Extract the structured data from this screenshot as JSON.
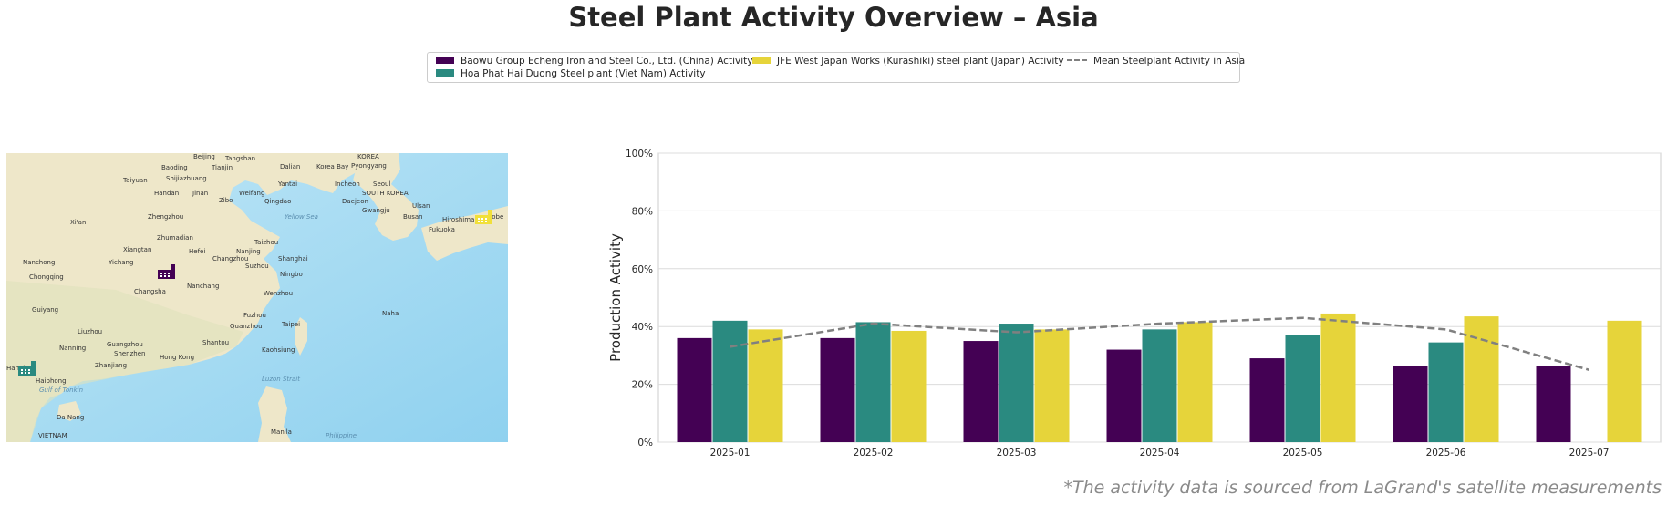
{
  "title": "Steel Plant Activity Overview – Asia",
  "footnote": "*The activity data is sourced from LaGrand's satellite measurements",
  "legend": {
    "baowu": "Baowu Group Echeng Iron and Steel Co., Ltd. (China) Activity",
    "hoaphat": "Hoa Phat Hai Duong Steel plant (Viet Nam) Activity",
    "jfe": "JFE West Japan Works (Kurashiki) steel plant (Japan) Activity",
    "mean": "Mean Steelplant Activity in Asia"
  },
  "colors": {
    "baowu": "#440154",
    "hoaphat": "#2a8a80",
    "jfe": "#e6d43a",
    "mean": "#808080"
  },
  "map": {
    "icons": [
      "factory-icon-china",
      "factory-icon-vietnam",
      "factory-icon-japan"
    ],
    "labels": {
      "korea": "KOREA",
      "south_korea": "SOUTH KOREA",
      "vietnam": "VIETNAM",
      "beijing": "Beijing",
      "tangshan": "Tangshan",
      "baoding": "Baoding",
      "tianjin": "Tianjin",
      "shijiazhuang": "Shijiazhuang",
      "taiyuan": "Taiyuan",
      "handan": "Handan",
      "jinan": "Jinan",
      "weifang": "Weifang",
      "zibo": "Zibo",
      "qingdao": "Qingdao",
      "yantai": "Yantai",
      "dalian": "Dalian",
      "incheon": "Incheon",
      "seoul": "Seoul",
      "pyongyang": "Pyongyang",
      "daejeon": "Daejeon",
      "gwangju": "Gwangju",
      "busan": "Busan",
      "ulsan": "Ulsan",
      "fukuoka": "Fukuoka",
      "hiroshima": "Hiroshima",
      "kobe": "Kobe",
      "xian": "Xi'an",
      "zhengzhou": "Zhengzhou",
      "zhumadian": "Zhumadian",
      "xiangtan": "Xiangtan",
      "hefei": "Hefei",
      "taizhou": "Taizhou",
      "nanjing": "Nanjing",
      "changzhou": "Changzhou",
      "shanghai": "Shanghai",
      "suzhou": "Suzhou",
      "ningbo": "Ningbo",
      "nanchong": "Nanchong",
      "yichang": "Yichang",
      "chongqing": "Chongqing",
      "changsha": "Changsha",
      "nanchang": "Nanchang",
      "wenzhou": "Wenzhou",
      "guiyang": "Guiyang",
      "fuzhou": "Fuzhou",
      "quanzhou": "Quanzhou",
      "taipei": "Taipei",
      "naha": "Naha",
      "liuzhou": "Liuzhou",
      "nanning": "Nanning",
      "guangzhou": "Guangzhou",
      "shenzhen": "Shenzhen",
      "shantou": "Shantou",
      "kaohsiung": "Kaohsiung",
      "hong_kong": "Hong Kong",
      "zhanjiang": "Zhanjiang",
      "hanoi": "Hanoi",
      "haiphong": "Haiphong",
      "da_nang": "Da Nang",
      "manila": "Manila",
      "yellow_sea": "Yellow Sea",
      "korea_bay": "Korea Bay",
      "gulf_of_tonkin": "Gulf of Tonkin",
      "luzon_strait": "Luzon Strait",
      "philippine": "Philippine"
    }
  },
  "chart_data": {
    "type": "bar",
    "categories": [
      "2025-01",
      "2025-02",
      "2025-03",
      "2025-04",
      "2025-05",
      "2025-06",
      "2025-07"
    ],
    "series": [
      {
        "name": "Baowu Group Echeng Iron and Steel Co., Ltd. (China) Activity",
        "values": [
          36,
          36,
          35,
          32,
          29,
          26.5,
          26.5
        ]
      },
      {
        "name": "Hoa Phat Hai Duong Steel plant (Viet Nam) Activity",
        "values": [
          42,
          41.5,
          41,
          39,
          37,
          34.5,
          null
        ]
      },
      {
        "name": "JFE West Japan Works (Kurashiki) steel plant (Japan) Activity",
        "values": [
          39,
          38.5,
          39,
          41.5,
          44.5,
          43.5,
          42
        ]
      }
    ],
    "mean_line": {
      "name": "Mean Steelplant Activity in Asia",
      "values": [
        33,
        41,
        38,
        41,
        43,
        39,
        25
      ]
    },
    "ylabel": "Production Activity",
    "xlabel": "",
    "ylim": [
      0,
      100
    ],
    "yticks": [
      "0%",
      "20%",
      "40%",
      "60%",
      "80%",
      "100%"
    ],
    "grid": true,
    "legend_position": "top-center"
  }
}
